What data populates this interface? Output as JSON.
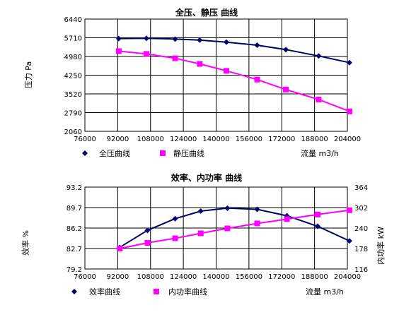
{
  "chart_data": [
    {
      "type": "line",
      "title": "全压、静压 曲线",
      "ylabel": "压力 Pa",
      "xlabel": "流量 m3/h",
      "xlim": [
        76000,
        204000
      ],
      "x_ticks": [
        "76000",
        "92000",
        "108000",
        "124000",
        "140000",
        "156000",
        "172000",
        "188000",
        "204000"
      ],
      "ylim": [
        2060,
        6440
      ],
      "y_ticks": [
        "2060",
        "2790",
        "3520",
        "4250",
        "4980",
        "5710",
        "6440"
      ],
      "grid": true,
      "legend_position": "bottom",
      "series": [
        {
          "name": "全压曲线",
          "color": "#000066",
          "marker": "diamond",
          "points": [
            [
              92500,
              5680
            ],
            [
              106000,
              5690
            ],
            [
              120000,
              5660
            ],
            [
              132000,
              5620
            ],
            [
              145000,
              5540
            ],
            [
              160000,
              5420
            ],
            [
              174000,
              5250
            ],
            [
              190000,
              5000
            ],
            [
              205000,
              4740
            ]
          ]
        },
        {
          "name": "静压曲线",
          "color": "#ff00ff",
          "marker": "square",
          "points": [
            [
              92500,
              5190
            ],
            [
              106000,
              5080
            ],
            [
              120000,
              4910
            ],
            [
              132000,
              4690
            ],
            [
              145000,
              4420
            ],
            [
              160000,
              4080
            ],
            [
              174000,
              3690
            ],
            [
              190000,
              3300
            ],
            [
              205000,
              2840
            ]
          ]
        }
      ]
    },
    {
      "type": "line",
      "title": "效率、内功率 曲线",
      "ylabel": "效率 %",
      "y2label": "内功率 kW",
      "xlabel": "流量 m3/h",
      "xlim": [
        76000,
        204000
      ],
      "x_ticks": [
        "76000",
        "92000",
        "108000",
        "124000",
        "140000",
        "156000",
        "172000",
        "188000",
        "204000"
      ],
      "ylim": [
        79.2,
        93.2
      ],
      "y_ticks": [
        "79.2",
        "82.7",
        "86.2",
        "89.7",
        "93.2"
      ],
      "y2lim": [
        116,
        364
      ],
      "y2_ticks": [
        "116",
        "178",
        "240",
        "302",
        "364"
      ],
      "grid": true,
      "legend_position": "bottom",
      "series": [
        {
          "name": "效率曲线",
          "color": "#000066",
          "marker": "diamond",
          "axis": "left",
          "points": [
            [
              93000,
              82.9
            ],
            [
              106500,
              85.8
            ],
            [
              120000,
              87.8
            ],
            [
              132500,
              89.1
            ],
            [
              145500,
              89.6
            ],
            [
              160000,
              89.4
            ],
            [
              174500,
              88.3
            ],
            [
              189500,
              86.5
            ],
            [
              205000,
              84.0
            ]
          ]
        },
        {
          "name": "内功率曲线",
          "color": "#ff00ff",
          "marker": "square",
          "axis": "right",
          "points": [
            [
              93000,
              178
            ],
            [
              106500,
              195
            ],
            [
              120000,
              209
            ],
            [
              132500,
              224
            ],
            [
              145500,
              239
            ],
            [
              160000,
              254
            ],
            [
              174500,
              267
            ],
            [
              189500,
              281
            ],
            [
              205000,
              294
            ]
          ]
        }
      ]
    }
  ]
}
